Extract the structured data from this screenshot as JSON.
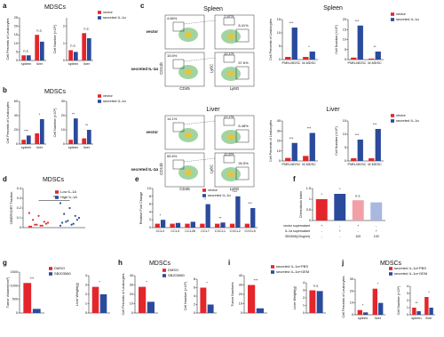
{
  "chart_data": [
    {
      "type": "bar",
      "panel": "a",
      "title": "MDSCs",
      "ylabel": "Cell Percents of Leukocytes",
      "categories": [
        "spleen",
        "liver"
      ],
      "series": [
        {
          "name": "vector",
          "color": "#e3262b",
          "values": [
            3,
            15
          ]
        },
        {
          "name": "secreted IL-1α",
          "color": "#2a4a9c",
          "values": [
            3,
            11
          ]
        }
      ],
      "ylim": [
        0,
        25
      ],
      "yticks": [
        0,
        5,
        10,
        15,
        20,
        25
      ],
      "annotations": [
        "n.s.",
        "n.s."
      ]
    },
    {
      "type": "bar",
      "ylabel": "Cell Number (×10⁶)",
      "categories": [
        "spleen",
        "liver"
      ],
      "series": [
        {
          "name": "vector",
          "color": "#e3262b",
          "values": [
            0.6,
            1.6
          ]
        },
        {
          "name": "secreted IL-1α",
          "color": "#2a4a9c",
          "values": [
            0.5,
            1.3
          ]
        }
      ],
      "ylim": [
        0,
        2.5
      ],
      "yticks": [
        0,
        1,
        2
      ],
      "annotations": [
        "n.s.",
        "n.s."
      ],
      "legend": true
    },
    {
      "type": "bar",
      "panel": "b",
      "title": "MDSCs",
      "ylabel": "Cell Percents of Leukocytes",
      "categories": [
        "spleen",
        "liver"
      ],
      "series": [
        {
          "name": "vector",
          "color": "#e3262b",
          "values": [
            6,
            15
          ]
        },
        {
          "name": "secreted IL-1α",
          "color": "#2a4a9c",
          "values": [
            12,
            35
          ]
        }
      ],
      "ylim": [
        0,
        60
      ],
      "yticks": [
        0,
        20,
        40,
        60
      ],
      "annotations": [
        "***",
        "*"
      ]
    },
    {
      "type": "bar",
      "ylabel": "Cell Number (×10⁶)",
      "categories": [
        "spleen",
        "liver"
      ],
      "series": [
        {
          "name": "vector",
          "color": "#e3262b",
          "values": [
            3,
            4
          ]
        },
        {
          "name": "secreted IL-1α",
          "color": "#2a4a9c",
          "values": [
            18,
            10
          ]
        }
      ],
      "ylim": [
        0,
        30
      ],
      "yticks": [
        0,
        10,
        20,
        30
      ],
      "annotations": [
        "**",
        "**"
      ],
      "legend": true
    },
    {
      "type": "bar",
      "title": "Spleen",
      "ylabel": "Cell Percents of Leukocytes",
      "categories": [
        "PMN-MDSC",
        "M-MDSC"
      ],
      "series": [
        {
          "name": "vector",
          "color": "#e3262b",
          "values": [
            1,
            1
          ]
        },
        {
          "name": "secreted IL-1α",
          "color": "#2a4a9c",
          "values": [
            12,
            3
          ]
        }
      ],
      "ylim": [
        0,
        15
      ],
      "yticks": [
        0,
        5,
        10,
        15
      ],
      "annotations": [
        "***",
        "*"
      ]
    },
    {
      "type": "bar",
      "ylabel": "Cell Number (×10⁶)",
      "categories": [
        "PMN-MDSC",
        "M-MDSC"
      ],
      "series": [
        {
          "name": "vector",
          "color": "#e3262b",
          "values": [
            1,
            0.5
          ]
        },
        {
          "name": "secreted IL-1α",
          "color": "#2a4a9c",
          "values": [
            17,
            4
          ]
        }
      ],
      "ylim": [
        0,
        20
      ],
      "yticks": [
        0,
        5,
        10,
        15,
        20
      ],
      "annotations": [
        "***",
        "**"
      ],
      "legend": true
    },
    {
      "type": "bar",
      "title": "Liver",
      "ylabel": "Cell Percents of Leukocytes",
      "categories": [
        "PMN-MDSC",
        "M-MDSC"
      ],
      "series": [
        {
          "name": "vector",
          "color": "#e3262b",
          "values": [
            3,
            5
          ]
        },
        {
          "name": "secreted IL-1α",
          "color": "#2a4a9c",
          "values": [
            18,
            28
          ]
        }
      ],
      "ylim": [
        0,
        40
      ],
      "yticks": [
        0,
        10,
        20,
        30,
        40
      ],
      "annotations": [
        "***",
        "***"
      ]
    },
    {
      "type": "bar",
      "ylabel": "Cell Number (×10⁶)",
      "categories": [
        "PMN-MDSC",
        "M-MDSC"
      ],
      "series": [
        {
          "name": "vector",
          "color": "#e3262b",
          "values": [
            1,
            1
          ]
        },
        {
          "name": "secreted IL-1α",
          "color": "#2a4a9c",
          "values": [
            8,
            12
          ]
        }
      ],
      "ylim": [
        0,
        15
      ],
      "yticks": [
        0,
        5,
        10,
        15
      ],
      "annotations": [
        "***",
        "***"
      ],
      "legend": true
    },
    {
      "type": "strip",
      "panel": "d",
      "title": "MDSCs",
      "ylabel": "CIBERSORT Fraction",
      "series": [
        {
          "name": "Low IL-1A",
          "color": "#e3262b",
          "values": [
            0.01,
            0.02,
            0.03,
            0.05,
            0.02,
            0.08,
            0.04,
            0.12,
            0.01,
            0.06,
            0.03,
            0.15
          ]
        },
        {
          "name": "High IL-1A",
          "color": "#2a4a9c",
          "values": [
            0.02,
            0.04,
            0.06,
            0.1,
            0.03,
            0.14,
            0.08,
            0.2,
            0.05,
            0.12,
            0.07,
            0.25
          ]
        }
      ],
      "ylim": [
        0,
        0.4
      ],
      "yticks": [
        0,
        0.1,
        0.2,
        0.3,
        0.4
      ],
      "annotations": [
        "*"
      ],
      "legend": true
    },
    {
      "type": "bar",
      "panel": "e",
      "ylabel": "Relative Fold Change",
      "categories": [
        "CCL2",
        "CCL3",
        "CCL26",
        "CCL7",
        "CXCL1",
        "CXCL2",
        "CXCL5"
      ],
      "series": [
        {
          "name": "vector",
          "color": "#e3262b",
          "values": [
            1,
            1,
            1,
            1,
            1,
            1,
            1
          ]
        },
        {
          "name": "secreted IL-1α",
          "color": "#2a4a9c",
          "values": [
            2,
            1.2,
            1.5,
            6,
            1.3,
            8,
            5
          ]
        }
      ],
      "ylim": [
        0,
        10
      ],
      "yticks": [
        0,
        2,
        4,
        6,
        8,
        10
      ],
      "annotations": [
        "*",
        null,
        null,
        "*",
        "**",
        "***",
        "***"
      ],
      "legend": true
    },
    {
      "type": "bar",
      "panel": "f",
      "ylabel": "Chemotaxis Index",
      "categories": [
        null,
        null,
        null,
        null
      ],
      "series": [
        {
          "colors": [
            "#e3262b",
            "#2a4a9c",
            "#f2a0a8",
            "#a9b8de"
          ],
          "values": [
            1.0,
            1.25,
            0.95,
            0.85
          ]
        }
      ],
      "ylim": [
        0,
        1.5
      ],
      "yticks": [
        0,
        0.5,
        1,
        1.5
      ],
      "annotations": [
        "*",
        "*",
        "n.s.",
        null
      ],
      "table": [
        {
          "label": "vector supernatant",
          "cells": [
            "+",
            "-",
            "+",
            "-"
          ]
        },
        {
          "label": "IL-1α supernatant",
          "cells": [
            "-",
            "+",
            "-",
            "+"
          ]
        },
        {
          "label": "SB2606(10ng/ml)",
          "cells": [
            "-",
            "-",
            "100",
            "100"
          ]
        }
      ]
    },
    {
      "type": "bar",
      "panel": "g",
      "ylabel": "Tumor Volume(mm³)",
      "categories": [
        null
      ],
      "series": [
        {
          "name": "DMSO",
          "color": "#e3262b",
          "values": [
            1100
          ]
        },
        {
          "name": "SB203580",
          "color": "#2a4a9c",
          "values": [
            150
          ]
        }
      ],
      "ylim": [
        0,
        1500
      ],
      "yticks": [
        0,
        500,
        1000,
        1500
      ],
      "annotations": [
        "***"
      ],
      "legend": true
    },
    {
      "type": "bar",
      "ylabel": "Liver Weight(g)",
      "categories": [
        null
      ],
      "series": [
        {
          "name": "DMSO",
          "color": "#e3262b",
          "values": [
            2.8
          ]
        },
        {
          "name": "SB203580",
          "color": "#2a4a9c",
          "values": [
            2.0
          ]
        }
      ],
      "ylim": [
        0,
        4
      ],
      "yticks": [
        0,
        1,
        2,
        3,
        4
      ],
      "annotations": [
        "*"
      ]
    },
    {
      "type": "bar",
      "panel": "h",
      "title": "MDSCs",
      "ylabel": "Cell Percents of Leukocytes",
      "categories": [
        null
      ],
      "series": [
        {
          "name": "DMSO",
          "color": "#e3262b",
          "values": [
            28
          ]
        },
        {
          "name": "SB203580",
          "color": "#2a4a9c",
          "values": [
            12
          ]
        }
      ],
      "ylim": [
        0,
        40
      ],
      "yticks": [
        0,
        10,
        20,
        30,
        40
      ],
      "annotations": [
        "*"
      ],
      "legend": true
    },
    {
      "type": "bar",
      "ylabel": "Cell Number (×10⁶)",
      "categories": [
        null
      ],
      "series": [
        {
          "name": "DMSO",
          "color": "#e3262b",
          "values": [
            6
          ]
        },
        {
          "name": "SB203580",
          "color": "#2a4a9c",
          "values": [
            2
          ]
        }
      ],
      "ylim": [
        0,
        8
      ],
      "yticks": [
        0,
        2,
        4,
        6,
        8
      ],
      "annotations": [
        "*"
      ]
    },
    {
      "type": "bar",
      "panel": "i",
      "ylabel": "Tumor Numbers",
      "categories": [
        null
      ],
      "series": [
        {
          "name": "secreted IL-1α+PBS",
          "color": "#e3262b",
          "values": [
            30
          ]
        },
        {
          "name": "secreted IL-1α+GEM",
          "color": "#2a4a9c",
          "values": [
            5
          ]
        }
      ],
      "ylim": [
        0,
        40
      ],
      "yticks": [
        0,
        10,
        20,
        30,
        40
      ],
      "annotations": [
        "***"
      ],
      "legend": true
    },
    {
      "type": "bar",
      "ylabel": "Liver Weight(g)",
      "categories": [
        null
      ],
      "series": [
        {
          "name": "secreted IL-1α+PBS",
          "color": "#e3262b",
          "values": [
            3
          ]
        },
        {
          "name": "secreted IL-1α+GEM",
          "color": "#2a4a9c",
          "values": [
            2.9
          ]
        }
      ],
      "ylim": [
        0,
        4
      ],
      "yticks": [
        0,
        1,
        2,
        3,
        4
      ],
      "annotations": [
        "n.s."
      ]
    },
    {
      "type": "bar",
      "panel": "j",
      "title": "MDSCs",
      "ylabel": "Cell Percents of Leukocytes",
      "categories": [
        "spleen",
        "liver"
      ],
      "series": [
        {
          "name": "secreted IL-1α+PBS",
          "color": "#e3262b",
          "values": [
            4,
            22
          ]
        },
        {
          "name": "secreted IL-1α+GEM",
          "color": "#2a4a9c",
          "values": [
            2,
            10
          ]
        }
      ],
      "ylim": [
        0,
        30
      ],
      "yticks": [
        0,
        10,
        20,
        30
      ],
      "annotations": [
        "*",
        "*"
      ],
      "legend": true
    },
    {
      "type": "bar",
      "ylabel": "Cell Number (×10⁶)",
      "categories": [
        "spleen",
        "liver"
      ],
      "series": [
        {
          "name": "secreted IL-1α+PBS",
          "color": "#e3262b",
          "values": [
            1,
            2.5
          ]
        },
        {
          "name": "secreted IL-1α+GEM",
          "color": "#2a4a9c",
          "values": [
            0.5,
            1
          ]
        }
      ],
      "ylim": [
        0,
        4
      ],
      "yticks": [
        0,
        1,
        2,
        3,
        4
      ],
      "annotations": [
        "**",
        "*"
      ]
    }
  ],
  "flow": {
    "panel": "c",
    "tissues": [
      {
        "name": "Spleen",
        "axes": [
          "CD11b",
          "CD45",
          "Ly6C",
          "Ly6G"
        ],
        "rows": [
          {
            "label": "vector",
            "gate1": "4.66%",
            "gate2a": "7.97%",
            "gate2b": "8.41%"
          },
          {
            "label": "secreted IL-1α",
            "gate1": "15.6%",
            "gate2a": "12.1%",
            "gate2b": "57.6%"
          }
        ]
      },
      {
        "name": "Liver",
        "axes": [
          "CD11b",
          "CD45",
          "Ly6C",
          "Ly6G"
        ],
        "rows": [
          {
            "label": "vector",
            "gate1": "14.1%",
            "gate2a": "17.7%",
            "gate2b": "8.48%"
          },
          {
            "label": "secreted IL-1α",
            "gate1": "55.5%",
            "gate2a": "12.6%",
            "gate2b": "26.5%"
          }
        ]
      }
    ]
  }
}
